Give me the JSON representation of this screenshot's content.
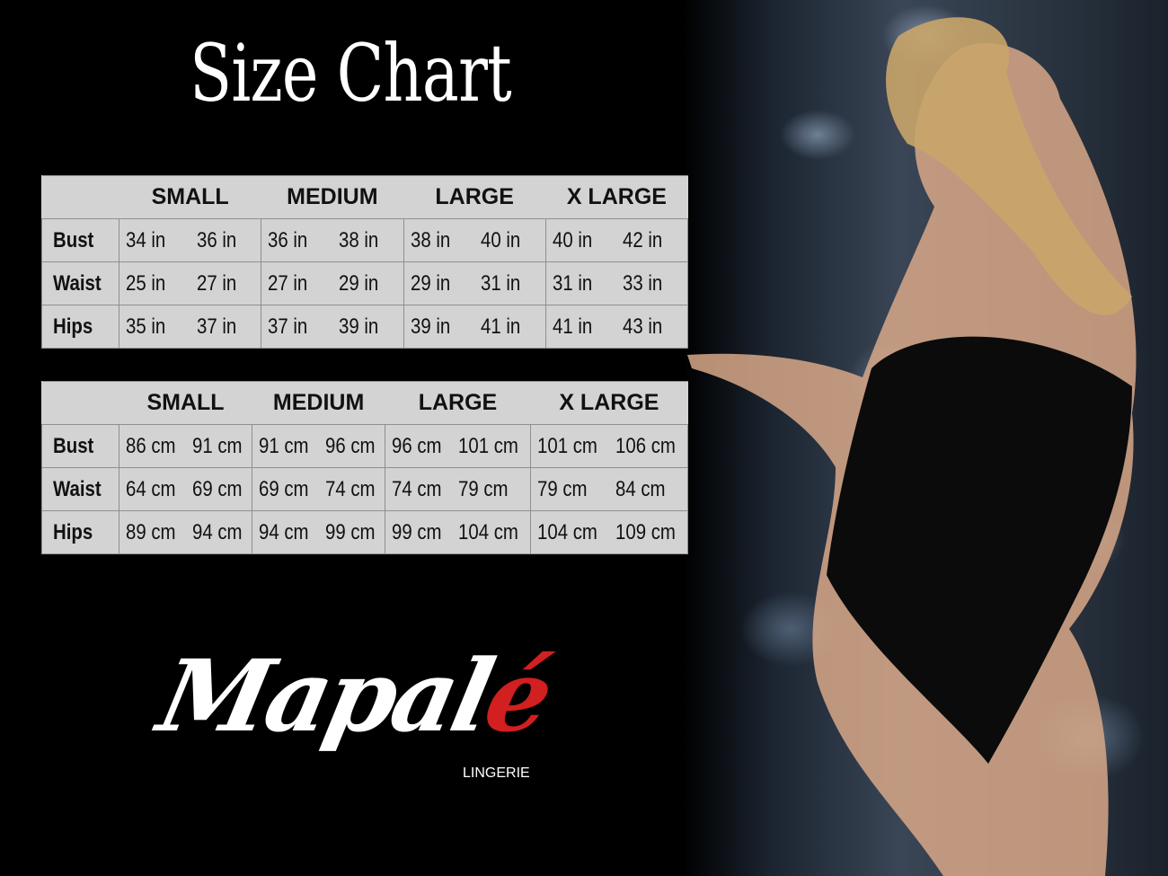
{
  "title": "Size Chart",
  "sizes": [
    "SMALL",
    "MEDIUM",
    "LARGE",
    "X LARGE"
  ],
  "table_inches": {
    "rows": [
      {
        "label": "Bust",
        "values": [
          "34 in",
          "36 in",
          "36 in",
          "38 in",
          "38 in",
          "40 in",
          "40 in",
          "42 in"
        ]
      },
      {
        "label": "Waist",
        "values": [
          "25 in",
          "27 in",
          "27 in",
          "29 in",
          "29 in",
          "31 in",
          "31 in",
          "33 in"
        ]
      },
      {
        "label": "Hips",
        "values": [
          "35 in",
          "37 in",
          "37 in",
          "39 in",
          "39 in",
          "41 in",
          "41 in",
          "43 in"
        ]
      }
    ]
  },
  "table_cm": {
    "rows": [
      {
        "label": "Bust",
        "values": [
          "86 cm",
          "91 cm",
          "91 cm",
          "96 cm",
          "96 cm",
          "101 cm",
          "101 cm",
          "106 cm"
        ]
      },
      {
        "label": "Waist",
        "values": [
          "64 cm",
          "69 cm",
          "69 cm",
          "74 cm",
          "74 cm",
          "79 cm",
          "79 cm",
          "84 cm"
        ]
      },
      {
        "label": "Hips",
        "values": [
          "89 cm",
          "94 cm",
          "94 cm",
          "99 cm",
          "99 cm",
          "104 cm",
          "104 cm",
          "109 cm"
        ]
      }
    ]
  },
  "logo": {
    "name": "Mapalé",
    "main": "Mapal",
    "accent": "é",
    "subtitle": "LINGERIE",
    "accent_color": "#d21f1f"
  },
  "colors": {
    "background": "#000000",
    "table_bg": "#d3d3d3"
  }
}
